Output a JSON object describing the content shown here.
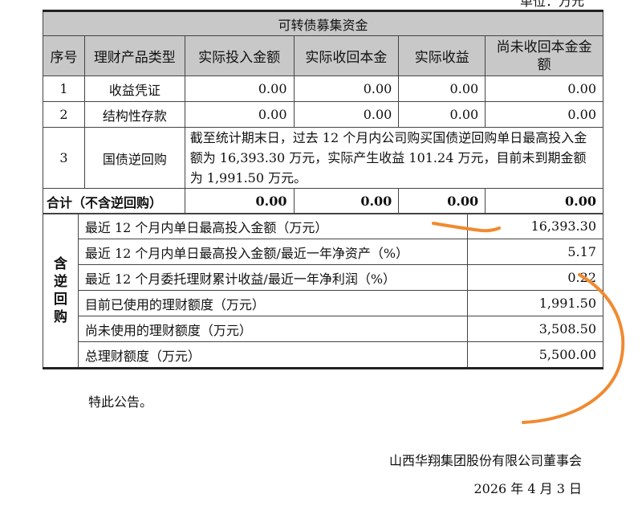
{
  "unit_label": "单位：万元",
  "table": {
    "title": "可转债募集资金",
    "headers": [
      "序号",
      "理财产品类型",
      "实际投入金额",
      "实际收回本金",
      "实际收益",
      "尚未收回本金金额"
    ],
    "rows": [
      {
        "no": "1",
        "type": "收益凭证",
        "invested": "0.00",
        "recovered": "0.00",
        "income": "0.00",
        "outstanding": "0.00"
      },
      {
        "no": "2",
        "type": "结构性存款",
        "invested": "0.00",
        "recovered": "0.00",
        "income": "0.00",
        "outstanding": "0.00"
      },
      {
        "no": "3",
        "type": "国债逆回购",
        "note": "截至统计期末日，过去 12 个月内公司购买国债逆回购单日最高投入金额为 16,393.30 万元，实际产生收益 101.24 万元，目前未到期金额为 1,991.50 万元。"
      }
    ],
    "total": {
      "label": "合计（不含逆回购）",
      "invested": "0.00",
      "recovered": "0.00",
      "income": "0.00",
      "outstanding": "0.00"
    }
  },
  "summary": {
    "group_label": "含逆回购",
    "rows": [
      {
        "label": "最近 12 个月内单日最高投入金额（万元）",
        "value": "16,393.30"
      },
      {
        "label": "最近 12 个月内单日最高投入金额/最近一年净资产（%）",
        "value": "5.17"
      },
      {
        "label": "最近 12 个月委托理财累计收益/最近一年净利润（%）",
        "value": "0.22"
      },
      {
        "label": "目前已使用的理财额度（万元）",
        "value": "1,991.50"
      },
      {
        "label": "尚未使用的理财额度（万元）",
        "value": "3,508.50"
      },
      {
        "label": "总理财额度（万元）",
        "value": "5,500.00"
      }
    ]
  },
  "closing": "特此公告。",
  "signature": "山西华翔集团股份有限公司董事会",
  "date": "2026 年 4 月 3 日",
  "ink_color": "#f08a30"
}
